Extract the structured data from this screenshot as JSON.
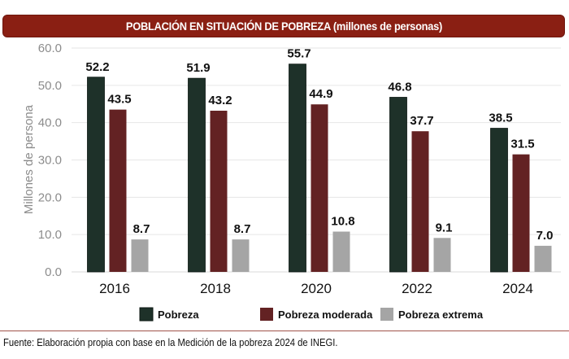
{
  "chart_data": {
    "type": "bar",
    "title": "POBLACIÓN EN SITUACIÓN DE POBREZA (millones de personas)",
    "xlabel": "",
    "ylabel": "Millones de persona",
    "ylim": [
      0,
      60
    ],
    "yticks": [
      "0.0",
      "10.0",
      "20.0",
      "30.0",
      "40.0",
      "50.0",
      "60.0"
    ],
    "ytick_values": [
      0,
      10,
      20,
      30,
      40,
      50,
      60
    ],
    "grid": true,
    "legend_position": "bottom",
    "categories": [
      "2016",
      "2018",
      "2020",
      "2022",
      "2024"
    ],
    "series": [
      {
        "name": "Pobreza",
        "color": "#1e3129",
        "values": [
          52.2,
          51.9,
          55.7,
          46.8,
          38.5
        ],
        "labels": [
          "52.2",
          "51.9",
          "55.7",
          "46.8",
          "38.5"
        ]
      },
      {
        "name": "Pobreza moderada",
        "color": "#632223",
        "values": [
          43.5,
          43.2,
          44.9,
          37.7,
          31.5
        ],
        "labels": [
          "43.5",
          "43.2",
          "44.9",
          "37.7",
          "31.5"
        ]
      },
      {
        "name": "Pobreza extrema",
        "color": "#a5a5a5",
        "values": [
          8.7,
          8.7,
          10.8,
          9.1,
          7.0
        ],
        "labels": [
          "8.7",
          "8.7",
          "10.8",
          "9.1",
          "7.0"
        ]
      }
    ]
  },
  "footer": {
    "source": "Fuente: Elaboración propia con base en la Medición de la pobreza 2024 de INEGI."
  },
  "colors": {
    "title_bg": "#8a1f13",
    "gridline": "#e6e6e6",
    "tick_text": "#8c8c8c"
  }
}
